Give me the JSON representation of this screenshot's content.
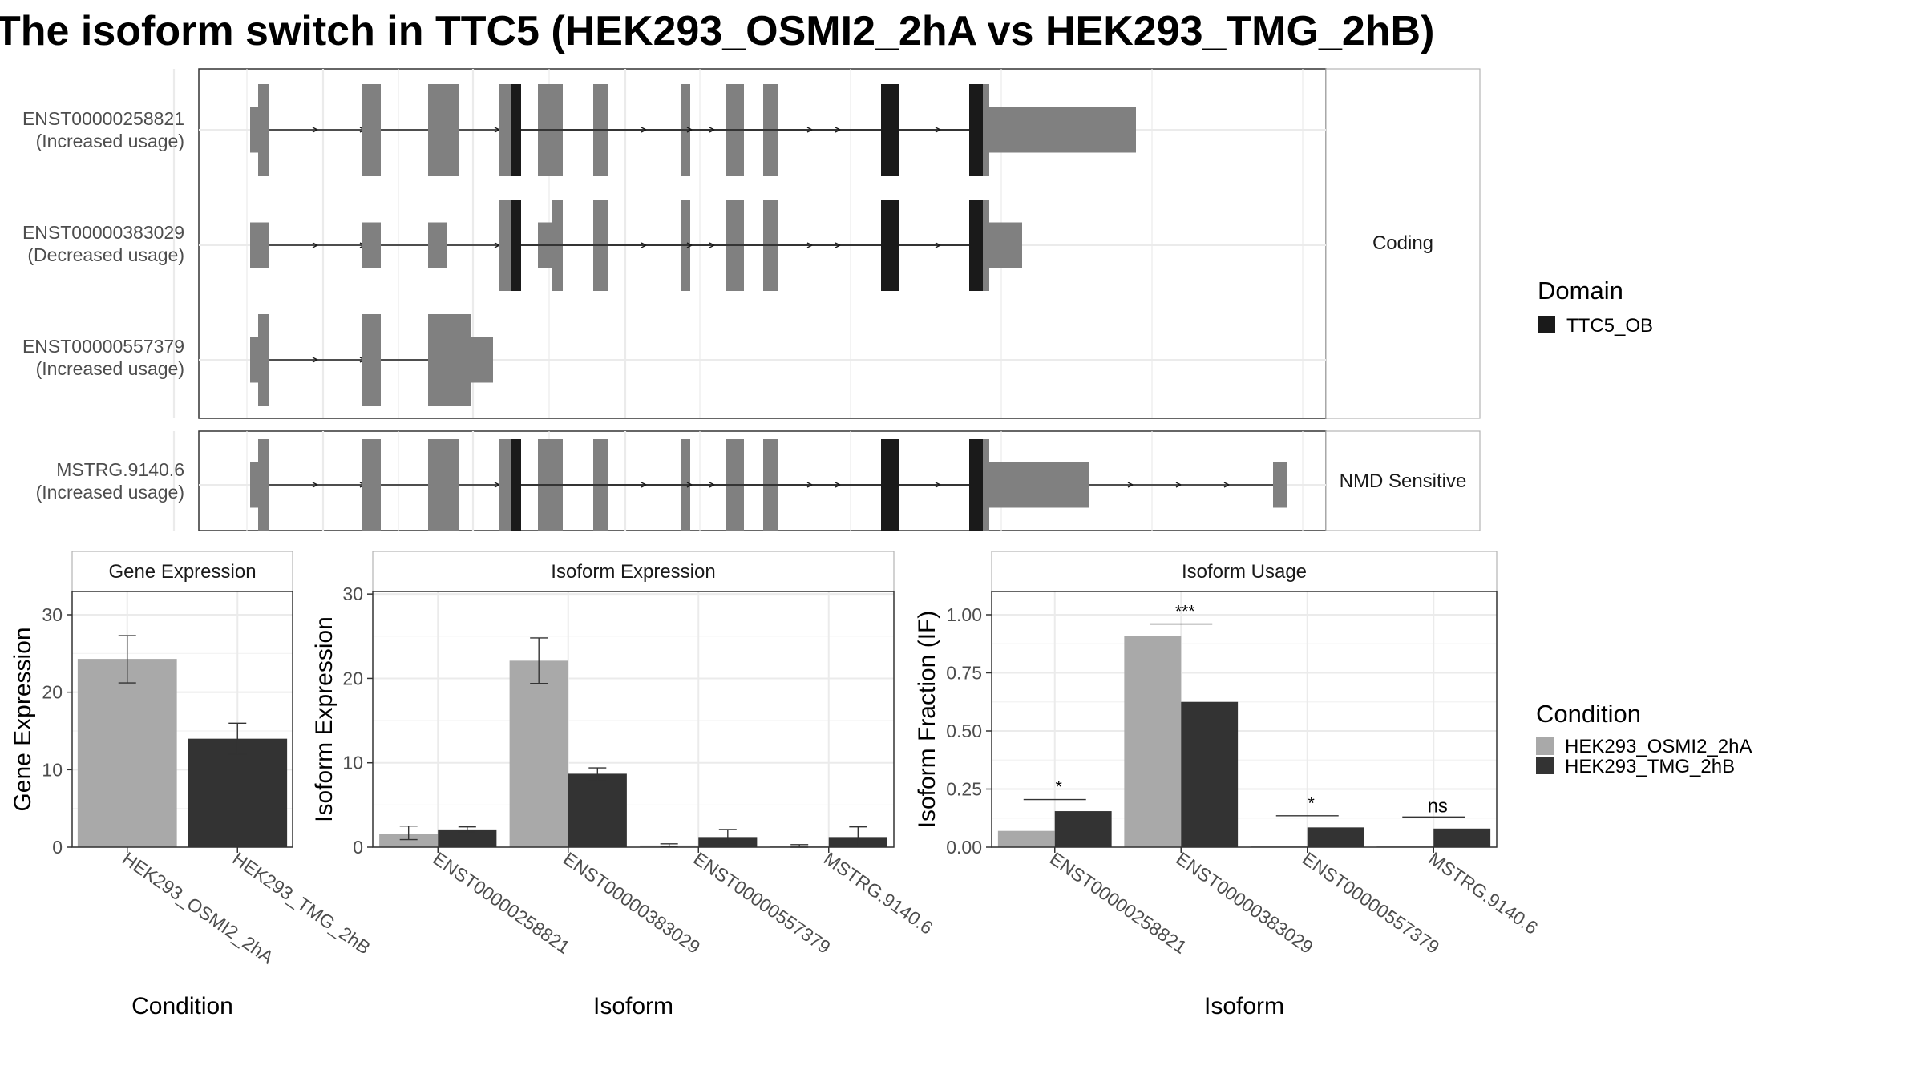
{
  "title": "The isoform switch in TTC5 (HEK293_OSMI2_2hA vs HEK293_TMG_2hB)",
  "transcript_panel": {
    "facets": [
      {
        "label": "Coding"
      },
      {
        "label": "NMD Sensitive"
      }
    ],
    "transcripts": [
      {
        "id": "ENST00000258821",
        "usage": "(Increased usage)",
        "facet": 0
      },
      {
        "id": "ENST00000383029",
        "usage": "(Decreased usage)",
        "facet": 0
      },
      {
        "id": "ENST00000557379",
        "usage": "(Increased usage)",
        "facet": 0
      },
      {
        "id": "MSTRG.9140.6",
        "usage": "(Increased usage)",
        "facet": 1
      }
    ]
  },
  "legend_domain": {
    "title": "Domain",
    "items": [
      {
        "label": "TTC5_OB",
        "color": "#1a1a1a"
      }
    ]
  },
  "legend_condition": {
    "title": "Condition",
    "items": [
      {
        "label": "HEK293_OSMI2_2hA",
        "color": "#a9a9a9"
      },
      {
        "label": "HEK293_TMG_2hB",
        "color": "#333333"
      }
    ]
  },
  "chart_data": [
    {
      "type": "bar",
      "title": "Gene Expression",
      "xlabel": "Condition",
      "ylabel": "Gene Expression",
      "ylim": [
        0,
        33
      ],
      "yticks": [
        0,
        10,
        20,
        30
      ],
      "categories": [
        "HEK293_OSMI2_2hA",
        "HEK293_TMG_2hB"
      ],
      "values": [
        24.3,
        14.0
      ],
      "error": [
        [
          21.2,
          27.3
        ],
        [
          12.0,
          16.0
        ]
      ],
      "colors": [
        "#a9a9a9",
        "#333333"
      ]
    },
    {
      "type": "bar",
      "title": "Isoform Expression",
      "xlabel": "Isoform",
      "ylabel": "Isoform Expression",
      "ylim": [
        0,
        30.3
      ],
      "yticks": [
        0,
        10,
        20,
        30
      ],
      "categories": [
        "ENST00000258821",
        "ENST00000383029",
        "ENST00000557379",
        "MSTRG.9140.6"
      ],
      "series": [
        {
          "name": "HEK293_OSMI2_2hA",
          "values": [
            1.6,
            22.1,
            0.2,
            0.1
          ],
          "error": [
            [
              0.9,
              2.5
            ],
            [
              19.4,
              24.8
            ],
            [
              0.1,
              0.4
            ],
            [
              0.0,
              0.3
            ]
          ]
        },
        {
          "name": "HEK293_TMG_2hB",
          "values": [
            2.1,
            8.7,
            1.2,
            1.2
          ],
          "error": [
            [
              1.8,
              2.4
            ],
            [
              7.9,
              9.4
            ],
            [
              0.4,
              2.1
            ],
            [
              0.1,
              2.4
            ]
          ]
        }
      ]
    },
    {
      "type": "bar",
      "title": "Isoform Usage",
      "xlabel": "Isoform",
      "ylabel": "Isoform Fraction (IF)",
      "ylim": [
        0,
        1.1
      ],
      "yticks": [
        "0.00",
        "0.25",
        "0.50",
        "0.75",
        "1.00"
      ],
      "categories": [
        "ENST00000258821",
        "ENST00000383029",
        "ENST00000557379",
        "MSTRG.9140.6"
      ],
      "series": [
        {
          "name": "HEK293_OSMI2_2hA",
          "values": [
            0.07,
            0.91,
            0.005,
            0.004
          ]
        },
        {
          "name": "HEK293_TMG_2hB",
          "values": [
            0.155,
            0.625,
            0.085,
            0.08
          ]
        }
      ],
      "significance": [
        "*",
        "***",
        "*",
        "ns"
      ]
    }
  ]
}
